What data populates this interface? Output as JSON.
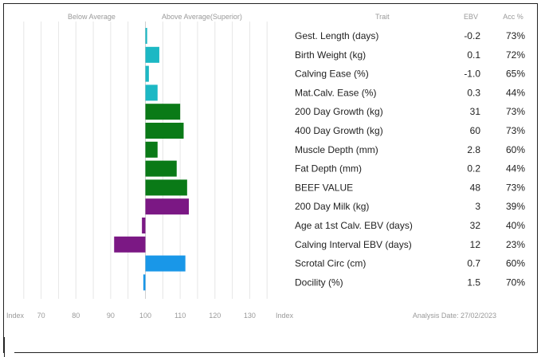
{
  "chart_data": {
    "type": "bar",
    "orientation": "horizontal",
    "headers": {
      "below_average": "Below Average",
      "above_average": "Above Average(Superior)",
      "trait": "Trait",
      "ebv": "EBV",
      "acc": "Acc %"
    },
    "x_ticks": [
      "Index",
      "70",
      "80",
      "90",
      "100",
      "110",
      "120",
      "130",
      "Index"
    ],
    "x_tick_values": [
      60,
      70,
      80,
      90,
      100,
      110,
      120,
      130,
      140
    ],
    "baseline": 100,
    "xlim": [
      60,
      140
    ],
    "grid": true,
    "analysis_date": "Analysis Date: 27/02/2023",
    "rows": [
      {
        "trait": "Gest. Length (days)",
        "ebv": "-0.2",
        "acc": "73%",
        "index": 100.5,
        "color": "#1cb8c4"
      },
      {
        "trait": "Birth Weight (kg)",
        "ebv": "0.1",
        "acc": "72%",
        "index": 104,
        "color": "#1cb8c4"
      },
      {
        "trait": "Calving Ease (%)",
        "ebv": "-1.0",
        "acc": "65%",
        "index": 101,
        "color": "#1cb8c4"
      },
      {
        "trait": "Mat.Calv. Ease (%)",
        "ebv": "0.3",
        "acc": "44%",
        "index": 103.5,
        "color": "#1cb8c4"
      },
      {
        "trait": "200 Day Growth (kg)",
        "ebv": "31",
        "acc": "73%",
        "index": 110,
        "color": "#0a7a17"
      },
      {
        "trait": "400 Day Growth (kg)",
        "ebv": "60",
        "acc": "73%",
        "index": 111,
        "color": "#0a7a17"
      },
      {
        "trait": "Muscle Depth (mm)",
        "ebv": "2.8",
        "acc": "60%",
        "index": 103.5,
        "color": "#0a7a17"
      },
      {
        "trait": "Fat Depth (mm)",
        "ebv": "0.2",
        "acc": "44%",
        "index": 109,
        "color": "#0a7a17"
      },
      {
        "trait": "BEEF VALUE",
        "ebv": "48",
        "acc": "73%",
        "index": 112,
        "color": "#0a7a17"
      },
      {
        "trait": "200 Day Milk (kg)",
        "ebv": "3",
        "acc": "39%",
        "index": 112.5,
        "color": "#7b1884"
      },
      {
        "trait": "Age at 1st Calv. EBV (days)",
        "ebv": "32",
        "acc": "40%",
        "index": 99,
        "color": "#7b1884"
      },
      {
        "trait": "Calving Interval EBV (days)",
        "ebv": "12",
        "acc": "23%",
        "index": 91,
        "color": "#7b1884"
      },
      {
        "trait": "Scrotal Circ (cm)",
        "ebv": "0.7",
        "acc": "60%",
        "index": 111.5,
        "color": "#1997e8"
      },
      {
        "trait": "Docility (%)",
        "ebv": "1.5",
        "acc": "70%",
        "index": 99.4,
        "color": "#1997e8"
      }
    ]
  }
}
